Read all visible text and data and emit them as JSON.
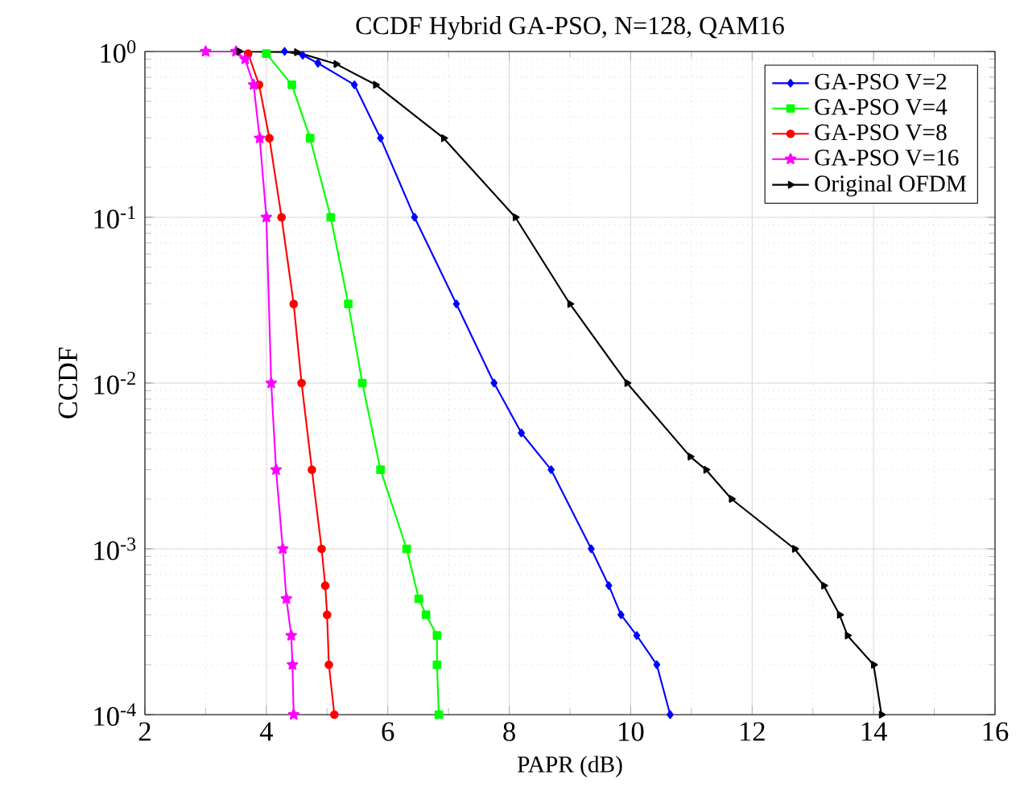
{
  "chart_data": {
    "type": "line",
    "title": "CCDF Hybrid GA-PSO, N=128, QAM16",
    "xlabel": "PAPR (dB)",
    "ylabel": "CCDF",
    "log": "y",
    "grid": true,
    "legend": "top right",
    "line_style": "solid",
    "xlim": [
      2,
      16
    ],
    "xticks": [
      2,
      4,
      6,
      8,
      10,
      12,
      14,
      16
    ],
    "ylim": [
      0.0001,
      1
    ],
    "yticks": [
      {
        "value": 0.0001,
        "label": "10$^{-4}$"
      },
      {
        "value": 0.001,
        "label": "10$^{-3}$"
      },
      {
        "value": 0.01,
        "label": "10$^{-2}$"
      },
      {
        "value": 0.1,
        "label": "10$^{-1}$"
      },
      {
        "value": 1,
        "label": "10$^{0}$"
      }
    ],
    "series": [
      {
        "name": "GA-PSO V=2",
        "color": "#0000ff",
        "marker": "diamond",
        "x": [
          4.3,
          4.6,
          4.85,
          5.45,
          5.88,
          6.44,
          7.13,
          7.75,
          8.2,
          8.69,
          9.35,
          9.64,
          9.84,
          10.1,
          10.43,
          10.65
        ],
        "values": [
          1,
          0.95,
          0.85,
          0.63,
          0.3,
          0.1,
          0.03,
          0.01,
          0.005,
          0.003,
          0.001,
          0.0006,
          0.0004,
          0.0003,
          0.0002,
          0.0001
        ]
      },
      {
        "name": "GA-PSO V=4",
        "color": "#00ff00",
        "marker": "square",
        "x": [
          4.0,
          4.42,
          4.72,
          5.06,
          5.35,
          5.58,
          5.88,
          6.31,
          6.51,
          6.63,
          6.81,
          6.81,
          6.84
        ],
        "values": [
          0.97,
          0.63,
          0.3,
          0.1,
          0.03,
          0.01,
          0.003,
          0.001,
          0.0005,
          0.0004,
          0.0003,
          0.0002,
          0.0001
        ]
      },
      {
        "name": "GA-PSO V=8",
        "color": "#ff0000",
        "marker": "circle",
        "x": [
          3.7,
          3.88,
          4.05,
          4.25,
          4.45,
          4.58,
          4.75,
          4.91,
          4.97,
          5.0,
          5.03,
          5.12
        ],
        "values": [
          0.97,
          0.63,
          0.3,
          0.1,
          0.03,
          0.01,
          0.003,
          0.001,
          0.0006,
          0.0004,
          0.0002,
          0.0001
        ]
      },
      {
        "name": "GA-PSO V=16",
        "color": "#ff00ff",
        "marker": "star",
        "x": [
          3.0,
          3.5,
          3.65,
          3.79,
          3.89,
          4.0,
          4.08,
          4.16,
          4.27,
          4.33,
          4.41,
          4.43,
          4.45
        ],
        "values": [
          1,
          1,
          0.9,
          0.63,
          0.3,
          0.1,
          0.01,
          0.003,
          0.001,
          0.0005,
          0.0003,
          0.0002,
          0.0001
        ]
      },
      {
        "name": "Original OFDM",
        "color": "#000000",
        "marker": "triangle",
        "x": [
          3.55,
          4.5,
          5.15,
          5.8,
          6.92,
          8.1,
          9.0,
          9.94,
          10.98,
          11.24,
          11.66,
          12.7,
          13.18,
          13.44,
          13.57,
          14.0,
          14.13
        ],
        "values": [
          1,
          0.99,
          0.84,
          0.63,
          0.3,
          0.1,
          0.03,
          0.01,
          0.0036,
          0.003,
          0.002,
          0.001,
          0.0006,
          0.0004,
          0.0003,
          0.0002,
          0.0001
        ]
      }
    ]
  }
}
